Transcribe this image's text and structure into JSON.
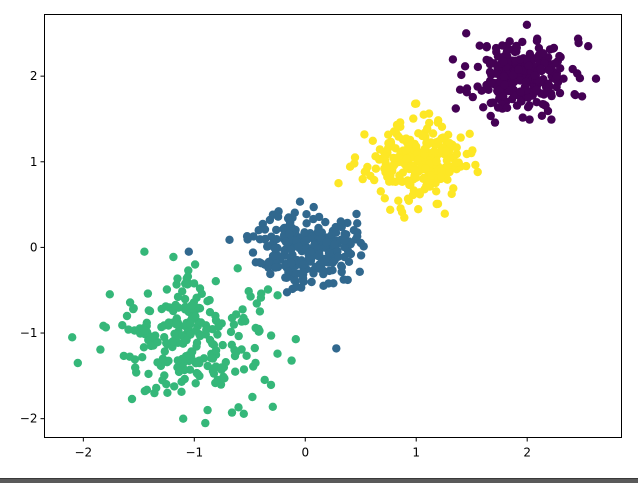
{
  "chart_data": {
    "type": "scatter",
    "title": "",
    "xlabel": "",
    "ylabel": "",
    "xlim": [
      -2.35,
      2.85
    ],
    "ylim": [
      -2.22,
      2.72
    ],
    "grid": false,
    "legend": "none",
    "x_ticks": [
      {
        "value": -2,
        "label": "−2"
      },
      {
        "value": -1,
        "label": "−1"
      },
      {
        "value": 0,
        "label": "0"
      },
      {
        "value": 1,
        "label": "1"
      },
      {
        "value": 2,
        "label": "2"
      }
    ],
    "y_ticks": [
      {
        "value": -2,
        "label": "−2"
      },
      {
        "value": -1,
        "label": "−1"
      },
      {
        "value": 0,
        "label": "0"
      },
      {
        "value": 1,
        "label": "1"
      },
      {
        "value": 2,
        "label": "2"
      }
    ],
    "clusters": [
      {
        "color": "#440154",
        "center": [
          1.95,
          2.0
        ],
        "spread": 0.22,
        "count": 250,
        "seed": 11
      },
      {
        "color": "#fde725",
        "center": [
          1.0,
          1.0
        ],
        "spread": 0.22,
        "count": 250,
        "seed": 23
      },
      {
        "color": "#31688e",
        "center": [
          0.0,
          0.0
        ],
        "spread": 0.22,
        "count": 250,
        "seed": 37
      },
      {
        "color": "#35b779",
        "center": [
          -1.0,
          -1.05
        ],
        "spread": 0.35,
        "count": 250,
        "seed": 41
      }
    ],
    "points": [
      {
        "x": 0.28,
        "y": -1.18,
        "color": "#31688e"
      },
      {
        "x": -0.88,
        "y": -1.9,
        "color": "#35b779"
      },
      {
        "x": -1.1,
        "y": -2.0,
        "color": "#35b779"
      },
      {
        "x": -2.05,
        "y": -1.35,
        "color": "#35b779"
      },
      {
        "x": -2.1,
        "y": -1.05,
        "color": "#35b779"
      },
      {
        "x": -1.45,
        "y": -0.05,
        "color": "#35b779"
      },
      {
        "x": -1.05,
        "y": -0.05,
        "color": "#31688e"
      },
      {
        "x": 0.3,
        "y": 0.75,
        "color": "#fde725"
      },
      {
        "x": 1.0,
        "y": 1.68,
        "color": "#fde725"
      },
      {
        "x": 1.45,
        "y": 0.95,
        "color": "#fde725"
      },
      {
        "x": 2.55,
        "y": 2.35,
        "color": "#440154"
      },
      {
        "x": 1.45,
        "y": 2.5,
        "color": "#440154"
      },
      {
        "x": 2.62,
        "y": 1.97,
        "color": "#440154"
      }
    ]
  }
}
